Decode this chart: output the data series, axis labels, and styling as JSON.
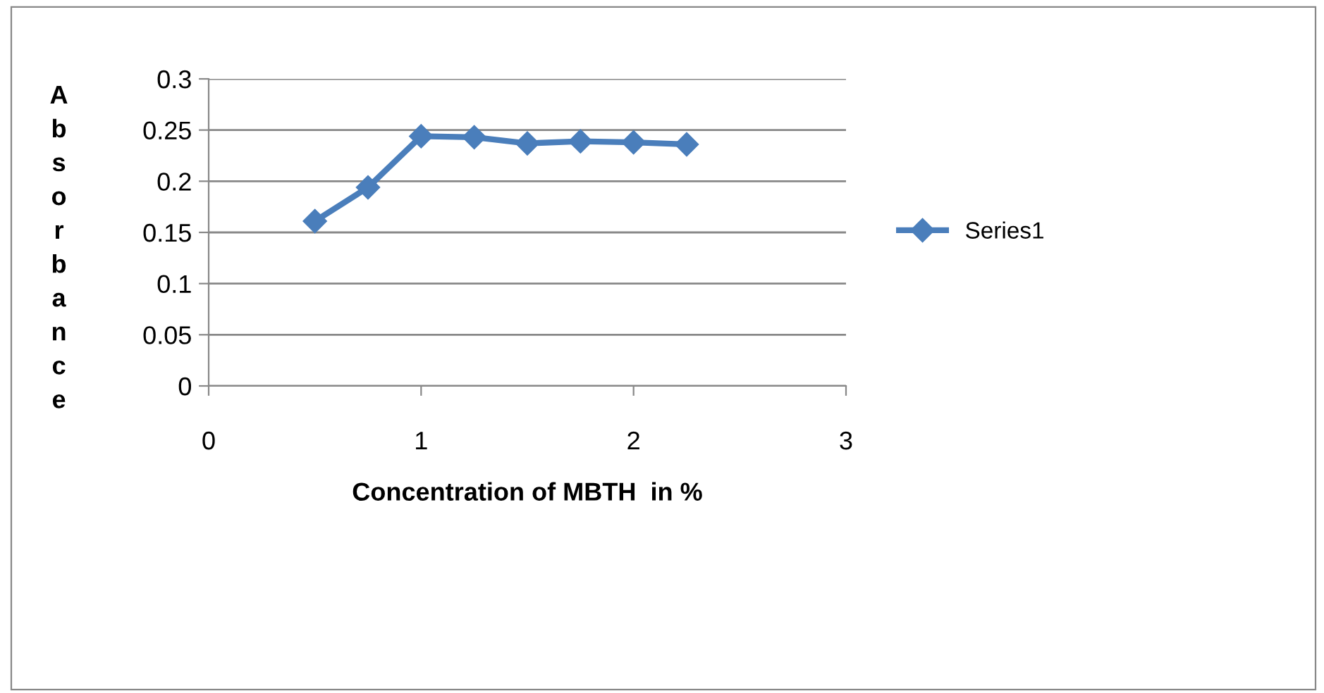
{
  "chart_data": {
    "type": "line",
    "xlabel": "Concentration of MBTH  in %",
    "ylabel": "Absorbance",
    "x": [
      0.5,
      0.75,
      1.0,
      1.25,
      1.5,
      1.75,
      2.0,
      2.25
    ],
    "series": [
      {
        "name": "Series1",
        "color": "#4a7ebb",
        "values": [
          0.161,
          0.194,
          0.244,
          0.243,
          0.237,
          0.239,
          0.238,
          0.236
        ]
      }
    ],
    "xlim": [
      0,
      3
    ],
    "xticks": [
      0,
      1,
      2,
      3
    ],
    "ylim": [
      0,
      0.3
    ],
    "yticks": [
      0,
      0.05,
      0.1,
      0.15,
      0.2,
      0.25,
      0.3
    ],
    "grid": "y",
    "legend": "right",
    "marker": "diamond",
    "line_style": "solid"
  }
}
